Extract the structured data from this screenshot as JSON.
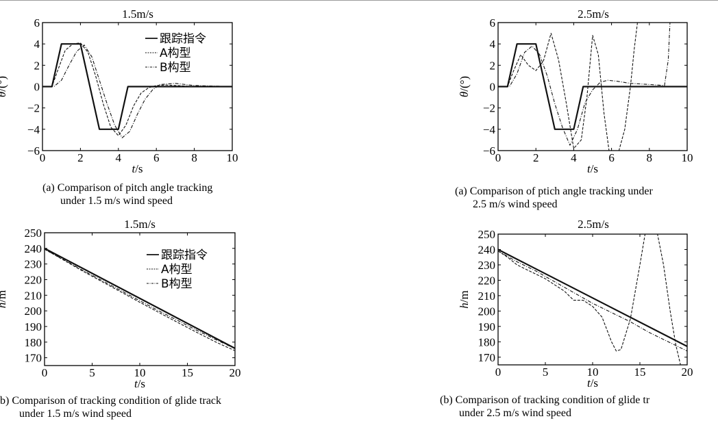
{
  "chart_data": [
    {
      "type": "line",
      "title": "1.5m/s",
      "xlabel": "t/s",
      "ylabel": "θ/(°)",
      "xlim": [
        0,
        10
      ],
      "ylim": [
        -6,
        6
      ],
      "xticks": [
        0,
        2,
        4,
        6,
        8,
        10
      ],
      "yticks": [
        -6,
        -4,
        -2,
        0,
        2,
        4,
        6
      ],
      "legend": "top-right",
      "series": [
        {
          "name": "跟踪指令",
          "style": "solid",
          "x": [
            0,
            0.5,
            1,
            2,
            3,
            4,
            4.5,
            10
          ],
          "y": [
            0,
            0,
            4,
            4,
            -4,
            -4,
            0,
            0
          ]
        },
        {
          "name": "A构型",
          "style": "dashed",
          "x": [
            0,
            0.5,
            0.8,
            1.2,
            1.6,
            2.0,
            2.4,
            2.8,
            3.2,
            3.6,
            4.0,
            4.4,
            4.8,
            5.2,
            5.6,
            6.0,
            6.5,
            7.0,
            8.0,
            10.0
          ],
          "y": [
            0,
            0,
            1.5,
            3.4,
            4.0,
            4.1,
            3.2,
            1.0,
            -1.6,
            -3.8,
            -4.6,
            -3.6,
            -1.8,
            -0.6,
            -0.1,
            0.1,
            0.15,
            0.1,
            0,
            0
          ]
        },
        {
          "name": "B构型",
          "style": "dashdot",
          "x": [
            0,
            0.6,
            1.0,
            1.4,
            1.8,
            2.2,
            2.6,
            3.0,
            3.4,
            3.8,
            4.2,
            4.6,
            5.0,
            5.4,
            5.8,
            6.2,
            7.0,
            8.0,
            10.0
          ],
          "y": [
            0,
            0,
            0.6,
            2.0,
            3.3,
            3.9,
            2.8,
            0.6,
            -1.6,
            -3.6,
            -4.8,
            -4.2,
            -2.6,
            -1.2,
            -0.3,
            0.2,
            0.3,
            0.1,
            0
          ]
        }
      ]
    },
    {
      "type": "line",
      "title": "1.5m/s",
      "xlabel": "t/s",
      "ylabel": "h/m",
      "xlim": [
        0,
        20
      ],
      "ylim": [
        165,
        250
      ],
      "xticks": [
        0,
        5,
        10,
        15,
        20
      ],
      "yticks": [
        170,
        180,
        190,
        200,
        210,
        220,
        230,
        240,
        250
      ],
      "legend": "top-right",
      "series": [
        {
          "name": "跟踪指令",
          "style": "solid",
          "x": [
            0,
            20
          ],
          "y": [
            240,
            176
          ]
        },
        {
          "name": "A构型",
          "style": "dashed",
          "x": [
            0,
            2,
            4,
            6,
            8,
            10,
            12,
            14,
            16,
            18,
            20
          ],
          "y": [
            239.5,
            232.5,
            225.5,
            218.8,
            212.2,
            205.5,
            199.0,
            192.5,
            186.2,
            180.0,
            174.5
          ]
        },
        {
          "name": "B构型",
          "style": "dashdot",
          "x": [
            0,
            2,
            4,
            6,
            8,
            10,
            12,
            14,
            16,
            18,
            20
          ],
          "y": [
            239.5,
            232.8,
            226.0,
            219.5,
            213.0,
            206.5,
            200.0,
            193.8,
            187.5,
            181.5,
            175.8
          ]
        }
      ]
    },
    {
      "type": "line",
      "title": "2.5m/s",
      "xlabel": "t/s",
      "ylabel": "θ/(°)",
      "xlim": [
        0,
        10
      ],
      "ylim": [
        -6,
        6
      ],
      "xticks": [
        0,
        2,
        4,
        6,
        8,
        10
      ],
      "yticks": [
        -6,
        -4,
        -2,
        0,
        2,
        4,
        6
      ],
      "series": [
        {
          "name": "跟踪指令",
          "style": "solid",
          "x": [
            0,
            0.5,
            1,
            2,
            3,
            4,
            4.5,
            10
          ],
          "y": [
            0,
            0,
            4,
            4,
            -4,
            -4,
            0,
            0
          ]
        },
        {
          "name": "A构型",
          "style": "dashed",
          "x": [
            0,
            0.5,
            0.8,
            1.2,
            1.6,
            2.0,
            2.4,
            2.8,
            3.2,
            3.6,
            4.0,
            4.4,
            4.7,
            5.0,
            5.3,
            5.6,
            5.9,
            6.3,
            6.7,
            7.0,
            7.2,
            7.4
          ],
          "y": [
            0,
            0,
            1.4,
            3.0,
            2.0,
            1.5,
            2.4,
            5.0,
            2.5,
            -1.5,
            -5.8,
            -5.0,
            -1.0,
            4.8,
            3.0,
            -2.5,
            -6.4,
            -6.6,
            -4.0,
            0,
            3.5,
            6.4
          ]
        },
        {
          "name": "B构型",
          "style": "dashdot",
          "x": [
            0,
            0.6,
            1.0,
            1.4,
            1.8,
            2.2,
            2.6,
            3.0,
            3.4,
            3.8,
            4.2,
            4.6,
            5.0,
            5.4,
            5.8,
            6.3,
            7.0,
            8.0,
            8.8,
            9.0,
            9.1
          ],
          "y": [
            0,
            0,
            1.2,
            3.2,
            3.8,
            3.0,
            1.0,
            -1.6,
            -3.8,
            -5.5,
            -4.0,
            -1.5,
            -0.3,
            0.4,
            0.6,
            0.5,
            0.3,
            0.2,
            0.1,
            2.5,
            6.4
          ]
        }
      ]
    },
    {
      "type": "line",
      "title": "2.5m/s",
      "xlabel": "t/s",
      "ylabel": "h/m",
      "xlim": [
        0,
        20
      ],
      "ylim": [
        165,
        250
      ],
      "xticks": [
        0,
        5,
        10,
        15,
        20
      ],
      "yticks": [
        170,
        180,
        190,
        200,
        210,
        220,
        230,
        240,
        250
      ],
      "series": [
        {
          "name": "跟踪指令",
          "style": "solid",
          "x": [
            0,
            20
          ],
          "y": [
            240,
            177
          ]
        },
        {
          "name": "A构型",
          "style": "dashed",
          "x": [
            0,
            1,
            2,
            3,
            4,
            5,
            6,
            7,
            8,
            9,
            10,
            11,
            12,
            12.5,
            13,
            14,
            15,
            15.6,
            16.2,
            16.8,
            17.5,
            18.2,
            18.8,
            19.3
          ],
          "y": [
            239,
            235,
            230,
            227,
            224,
            221,
            217,
            213,
            207,
            207,
            203,
            196,
            180,
            174,
            175,
            195,
            230,
            252,
            254,
            252,
            230,
            200,
            178,
            165
          ]
        },
        {
          "name": "B构型",
          "style": "dashdot",
          "x": [
            0,
            2,
            4,
            6,
            8,
            10,
            12,
            14,
            16,
            18,
            20
          ],
          "y": [
            239,
            232,
            226,
            219,
            212,
            205,
            199,
            193,
            186,
            180,
            174
          ]
        }
      ]
    }
  ],
  "captions": {
    "tl_line1": "(a) Comparison of pitch angle tracking",
    "tl_line2": "under 1.5 m/s wind speed",
    "bl_line1": "b) Comparison of tracking condition of glide track",
    "bl_line2": "under 1.5 m/s wind speed",
    "tr_line1": "(a) Comparison of ptich angle tracking under",
    "tr_line2": "2.5 m/s wind speed",
    "br_line1": "(b) Comparison of tracking condition of glide tr",
    "br_line2": "under 2.5 m/s wind speed"
  }
}
